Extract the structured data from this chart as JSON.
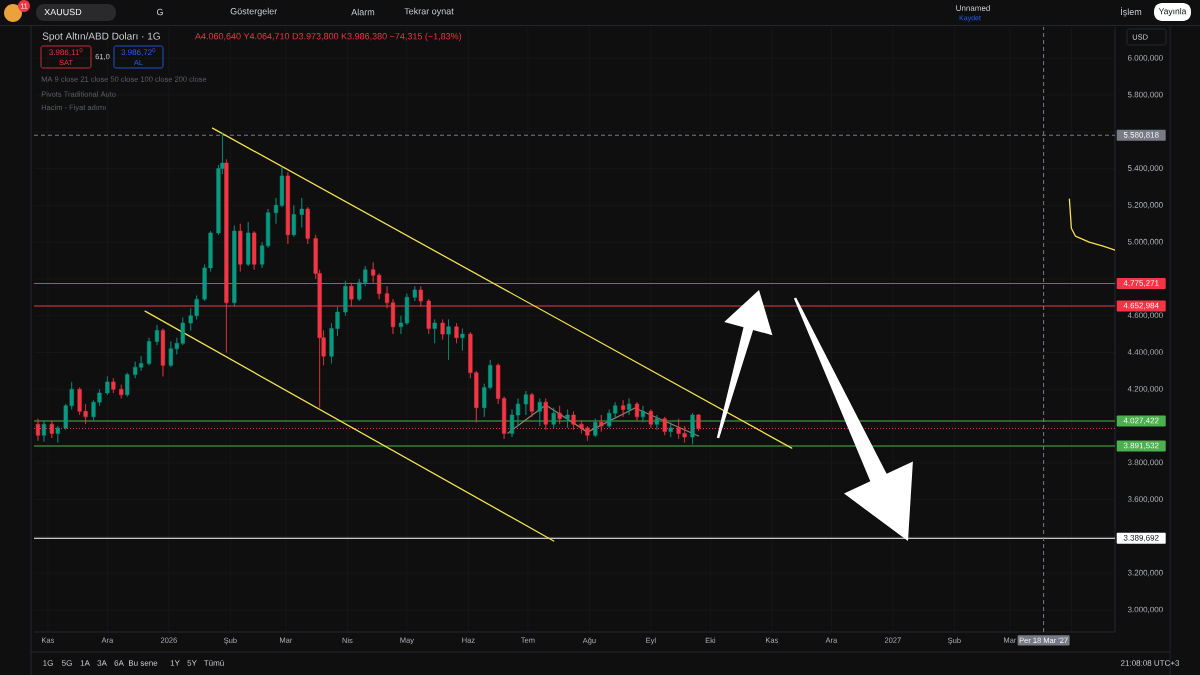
{
  "chart_data": {
    "type": "candlestick",
    "title": "Spot Altın/ABD Doları · 1G",
    "subtitle": "A4.060,640 Y4.064,710 D3.973,800 K3.986,380 −74,315 (−1,83%)",
    "x": [
      "2025-10-27",
      "2025-10-30",
      "2025-11-03",
      "2025-11-06",
      "2025-11-10",
      "2025-11-13",
      "2025-11-17",
      "2025-11-20",
      "2025-11-24",
      "2025-11-27",
      "2025-12-01",
      "2025-12-04",
      "2025-12-08",
      "2025-12-11",
      "2025-12-15",
      "2025-12-18",
      "2025-12-22",
      "2025-12-26",
      "2025-12-29",
      "2026-01-02",
      "2026-01-05",
      "2026-01-08",
      "2026-01-12",
      "2026-01-15",
      "2026-01-19",
      "2026-01-22",
      "2026-01-26",
      "2026-01-28",
      "2026-01-30",
      "2026-02-03",
      "2026-02-06",
      "2026-02-10",
      "2026-02-13",
      "2026-02-17",
      "2026-02-20",
      "2026-02-24",
      "2026-02-27",
      "2026-03-02",
      "2026-03-05",
      "2026-03-09",
      "2026-03-12",
      "2026-03-16",
      "2026-03-18",
      "2026-03-20",
      "2026-03-24",
      "2026-03-27",
      "2026-03-31",
      "2026-04-03",
      "2026-04-07",
      "2026-04-10",
      "2026-04-14",
      "2026-04-17",
      "2026-04-21",
      "2026-04-24",
      "2026-04-28",
      "2026-05-01",
      "2026-05-05",
      "2026-05-08",
      "2026-05-12",
      "2026-05-15",
      "2026-05-19",
      "2026-05-22",
      "2026-05-26",
      "2026-05-29",
      "2026-06-02",
      "2026-06-05",
      "2026-06-09",
      "2026-06-12",
      "2026-06-16",
      "2026-06-19",
      "2026-06-23",
      "2026-06-26",
      "2026-06-30",
      "2026-07-03",
      "2026-07-07",
      "2026-07-10",
      "2026-07-14",
      "2026-07-17",
      "2026-07-21",
      "2026-07-24",
      "2026-07-28",
      "2026-07-31",
      "2026-08-04",
      "2026-08-07",
      "2026-08-11",
      "2026-08-14",
      "2026-08-18",
      "2026-08-21",
      "2026-08-25",
      "2026-08-28",
      "2026-09-01",
      "2026-09-04",
      "2026-09-08",
      "2026-09-11",
      "2026-09-15",
      "2026-09-18",
      "2026-09-22",
      "2026-09-25"
    ],
    "ohlc": [
      [
        4010,
        4040,
        3920,
        3950
      ],
      [
        3950,
        4030,
        3915,
        4010
      ],
      [
        4010,
        4030,
        3935,
        3960
      ],
      [
        3960,
        4000,
        3910,
        3990
      ],
      [
        3990,
        4120,
        3980,
        4110
      ],
      [
        4110,
        4240,
        4090,
        4200
      ],
      [
        4200,
        4210,
        4060,
        4080
      ],
      [
        4080,
        4120,
        4010,
        4050
      ],
      [
        4050,
        4140,
        4030,
        4130
      ],
      [
        4130,
        4200,
        4110,
        4180
      ],
      [
        4180,
        4270,
        4170,
        4240
      ],
      [
        4240,
        4260,
        4180,
        4200
      ],
      [
        4200,
        4225,
        4150,
        4170
      ],
      [
        4170,
        4290,
        4160,
        4280
      ],
      [
        4280,
        4350,
        4260,
        4320
      ],
      [
        4320,
        4380,
        4300,
        4340
      ],
      [
        4340,
        4480,
        4330,
        4460
      ],
      [
        4460,
        4550,
        4440,
        4520
      ],
      [
        4520,
        4530,
        4270,
        4330
      ],
      [
        4330,
        4460,
        4320,
        4420
      ],
      [
        4420,
        4480,
        4390,
        4450
      ],
      [
        4450,
        4590,
        4440,
        4560
      ],
      [
        4560,
        4640,
        4520,
        4600
      ],
      [
        4600,
        4710,
        4580,
        4690
      ],
      [
        4690,
        4880,
        4680,
        4860
      ],
      [
        4860,
        5060,
        4840,
        5050
      ],
      [
        5050,
        5420,
        5040,
        5400
      ],
      [
        5400,
        5595,
        5370,
        5430
      ],
      [
        5430,
        5450,
        4400,
        4670
      ],
      [
        4670,
        5090,
        4650,
        5060
      ],
      [
        5060,
        5100,
        4840,
        4880
      ],
      [
        4880,
        5110,
        4870,
        5050
      ],
      [
        5050,
        5060,
        4850,
        4880
      ],
      [
        4880,
        5000,
        4860,
        4980
      ],
      [
        4980,
        5180,
        4970,
        5160
      ],
      [
        5160,
        5240,
        5100,
        5200
      ],
      [
        5200,
        5410,
        5190,
        5360
      ],
      [
        5360,
        5380,
        4990,
        5040
      ],
      [
        5040,
        5200,
        5030,
        5150
      ],
      [
        5150,
        5240,
        5080,
        5180
      ],
      [
        5180,
        5190,
        4990,
        5020
      ],
      [
        5020,
        5040,
        4800,
        4830
      ],
      [
        4830,
        4850,
        4100,
        4480
      ],
      [
        4480,
        4520,
        4330,
        4380
      ],
      [
        4380,
        4560,
        4340,
        4530
      ],
      [
        4530,
        4650,
        4490,
        4620
      ],
      [
        4620,
        4790,
        4600,
        4760
      ],
      [
        4760,
        4780,
        4650,
        4690
      ],
      [
        4690,
        4800,
        4680,
        4780
      ],
      [
        4780,
        4870,
        4760,
        4850
      ],
      [
        4850,
        4890,
        4780,
        4820
      ],
      [
        4820,
        4830,
        4690,
        4720
      ],
      [
        4720,
        4760,
        4640,
        4670
      ],
      [
        4670,
        4690,
        4500,
        4540
      ],
      [
        4540,
        4600,
        4500,
        4560
      ],
      [
        4560,
        4720,
        4550,
        4700
      ],
      [
        4700,
        4760,
        4680,
        4740
      ],
      [
        4740,
        4760,
        4650,
        4680
      ],
      [
        4680,
        4690,
        4500,
        4530
      ],
      [
        4530,
        4580,
        4450,
        4560
      ],
      [
        4560,
        4580,
        4470,
        4500
      ],
      [
        4500,
        4580,
        4360,
        4540
      ],
      [
        4540,
        4560,
        4450,
        4480
      ],
      [
        4480,
        4530,
        4410,
        4500
      ],
      [
        4500,
        4510,
        4260,
        4290
      ],
      [
        4290,
        4300,
        4020,
        4100
      ],
      [
        4100,
        4230,
        4050,
        4210
      ],
      [
        4210,
        4360,
        4200,
        4330
      ],
      [
        4330,
        4340,
        4120,
        4150
      ],
      [
        4150,
        4160,
        3930,
        3960
      ],
      [
        3960,
        4090,
        3940,
        4060
      ],
      [
        4060,
        4150,
        4000,
        4120
      ],
      [
        4120,
        4190,
        4060,
        4170
      ],
      [
        4170,
        4180,
        4050,
        4080
      ],
      [
        4080,
        4150,
        4000,
        4130
      ],
      [
        4130,
        4150,
        3980,
        4010
      ],
      [
        4010,
        4100,
        3990,
        4070
      ],
      [
        4070,
        4110,
        4010,
        4040
      ],
      [
        4040,
        4090,
        3990,
        4060
      ],
      [
        4060,
        4080,
        3980,
        4010
      ],
      [
        4010,
        4030,
        3960,
        3990
      ],
      [
        3990,
        4000,
        3920,
        3950
      ],
      [
        3950,
        4040,
        3940,
        4020
      ],
      [
        4020,
        4060,
        3970,
        4000
      ],
      [
        4000,
        4090,
        3990,
        4070
      ],
      [
        4070,
        4130,
        4040,
        4110
      ],
      [
        4110,
        4140,
        4050,
        4090
      ],
      [
        4090,
        4150,
        4060,
        4120
      ],
      [
        4120,
        4130,
        4030,
        4050
      ],
      [
        4050,
        4110,
        4020,
        4080
      ],
      [
        4080,
        4090,
        3990,
        4010
      ],
      [
        4010,
        4060,
        3980,
        4040
      ],
      [
        4040,
        4050,
        3950,
        3970
      ],
      [
        3970,
        4020,
        3940,
        3990
      ],
      [
        3990,
        4040,
        3930,
        3960
      ],
      [
        3960,
        4000,
        3910,
        3940
      ],
      [
        3940,
        4070,
        3900,
        4060
      ],
      [
        4060.64,
        4064.71,
        3973.8,
        3986.38
      ]
    ],
    "colors": [
      "#f23645",
      "#089981",
      "#f23645",
      "#089981",
      "#089981",
      "#089981",
      "#f23645",
      "#f23645",
      "#089981",
      "#089981",
      "#089981",
      "#f23645",
      "#f23645",
      "#089981",
      "#089981",
      "#089981",
      "#089981",
      "#089981",
      "#f23645",
      "#089981",
      "#089981",
      "#089981",
      "#089981",
      "#089981",
      "#089981",
      "#089981",
      "#089981",
      "#089981",
      "#f23645",
      "#089981",
      "#f23645",
      "#089981",
      "#f23645",
      "#089981",
      "#089981",
      "#089981",
      "#089981",
      "#f23645",
      "#089981",
      "#089981",
      "#f23645",
      "#f23645",
      "#f23645",
      "#f23645",
      "#089981",
      "#089981",
      "#089981",
      "#f23645",
      "#089981",
      "#089981",
      "#f23645",
      "#f23645",
      "#f23645",
      "#f23645",
      "#089981",
      "#089981",
      "#089981",
      "#f23645",
      "#f23645",
      "#089981",
      "#f23645",
      "#089981",
      "#f23645",
      "#089981",
      "#f23645",
      "#f23645",
      "#089981",
      "#089981",
      "#f23645",
      "#f23645",
      "#089981",
      "#089981",
      "#089981",
      "#f23645",
      "#089981",
      "#f23645",
      "#089981",
      "#f23645",
      "#089981",
      "#f23645",
      "#f23645",
      "#f23645",
      "#089981",
      "#f23645",
      "#089981",
      "#089981",
      "#f23645",
      "#089981",
      "#f23645",
      "#089981",
      "#f23645",
      "#089981",
      "#f23645",
      "#089981",
      "#f23645",
      "#f23645",
      "#089981",
      "#f23645"
    ],
    "series": [
      {
        "type": "line",
        "color": "#f2e14c",
        "x": [
          "2026-01-23",
          "2026-11-11"
        ],
        "values": [
          5620,
          3880
        ]
      },
      {
        "type": "line",
        "color": "#f2e14c",
        "x": [
          "2025-12-20",
          "2026-07-14"
        ],
        "values": [
          4625,
          3375
        ]
      },
      {
        "type": "line",
        "color": "#8c8270",
        "x": [
          "2026-06-21",
          "2026-07-10",
          "2026-07-31",
          "2026-08-24",
          "2026-09-25"
        ],
        "values": [
          3962,
          4114,
          3967,
          4098,
          3946
        ]
      },
      {
        "type": "line",
        "color": "#f2e14c",
        "x": [
          "2027-03-31",
          "2027-04-01",
          "2027-04-03",
          "2027-04-10",
          "2027-04-17",
          "2027-04-23"
        ],
        "values": [
          5234,
          5076,
          5033,
          5000,
          4978,
          4957
        ]
      }
    ],
    "xlim": [
      "2025-10-25",
      "2027-04-23"
    ],
    "ylim": [
      2880,
      6170
    ],
    "xticks": [
      {
        "value": "2025-11-01",
        "label": "Kas"
      },
      {
        "value": "2025-12-01",
        "label": "Ara"
      },
      {
        "value": "2026-01-01",
        "label": "2026"
      },
      {
        "value": "2026-02-01",
        "label": "Şub"
      },
      {
        "value": "2026-03-01",
        "label": "Mar"
      },
      {
        "value": "2026-04-01",
        "label": "Nis"
      },
      {
        "value": "2026-05-01",
        "label": "May"
      },
      {
        "value": "2026-06-01",
        "label": "Haz"
      },
      {
        "value": "2026-07-01",
        "label": "Tem"
      },
      {
        "value": "2026-08-01",
        "label": "Ağu"
      },
      {
        "value": "2026-09-01",
        "label": "Eyl"
      },
      {
        "value": "2026-10-01",
        "label": "Eki"
      },
      {
        "value": "2026-11-01",
        "label": "Kas"
      },
      {
        "value": "2026-12-01",
        "label": "Ara"
      },
      {
        "value": "2027-01-01",
        "label": "2027"
      },
      {
        "value": "2027-02-01",
        "label": "Şub"
      },
      {
        "value": "2027-03-01",
        "label": "Mar"
      },
      {
        "value": "2027-04-01",
        "label": null
      }
    ],
    "yticks": [
      {
        "value": 3000,
        "label": "3.000,000"
      },
      {
        "value": 3200,
        "label": "3.200,000"
      },
      {
        "value": 3400,
        "label": null
      },
      {
        "value": 3600,
        "label": "3.600,000"
      },
      {
        "value": 3800,
        "label": "3.800,000"
      },
      {
        "value": 4000,
        "label": null
      },
      {
        "value": 4200,
        "label": "4.200,000"
      },
      {
        "value": 4400,
        "label": "4.400,000"
      },
      {
        "value": 4600,
        "label": "4.600,000"
      },
      {
        "value": 4800,
        "label": null
      },
      {
        "value": 5000,
        "label": "5.000,000"
      },
      {
        "value": 5200,
        "label": "5.200,000"
      },
      {
        "value": 5400,
        "label": "5.400,000"
      },
      {
        "value": 5600,
        "label": null
      },
      {
        "value": 5800,
        "label": "5.800,000"
      },
      {
        "value": 6000,
        "label": "6.000,000"
      }
    ],
    "grid": true,
    "ref_lines": [
      {
        "axis": "y",
        "value": 5580.818,
        "label": "5.580,818",
        "color": "#787b86",
        "line_style": "dashed"
      },
      {
        "axis": "y",
        "value": 4775.271,
        "label": "4.775,271",
        "color": "#f23645"
      },
      {
        "axis": "y",
        "value": 4652.984,
        "label": "4.652,984",
        "color": "#f23645"
      },
      {
        "axis": "y",
        "value": 4027.422,
        "label": "4.027,422",
        "color": "#4caf50"
      },
      {
        "axis": "y",
        "value": 3986.38,
        "color": "#f23645",
        "line_style": "dotted"
      },
      {
        "axis": "y",
        "value": 3891.532,
        "label": "3.891,532",
        "color": "#4caf50"
      },
      {
        "axis": "y",
        "value": 3389.692,
        "label": "3.389,692",
        "color": "#ffffff"
      },
      {
        "axis": "x",
        "value": "2027-03-18",
        "label": "Per 18 Mar '27",
        "color": "#787b86",
        "line_style": "dashed"
      }
    ],
    "annotations": [
      "11",
      "XAUUSD",
      "G",
      "Göstergeler",
      "Alarm",
      "Tekrar oynat",
      "Unnamed",
      "Kaydet",
      "İşlem",
      "Yayınla",
      "3.986,11$^{0}$",
      "SAT",
      "61,0",
      "3.986,72$^{0}$",
      "AL",
      "MA 9 close 21 close 50 close 100 close 200 close",
      "Pivots Traditional Auto",
      "Hacim - Fiyat adımı",
      "USD",
      "1G",
      "5G",
      "1A",
      "3A",
      "6A",
      "Bu sene",
      "1Y",
      "5Y",
      "Tümü",
      "21:08:08 UTC+3"
    ]
  }
}
